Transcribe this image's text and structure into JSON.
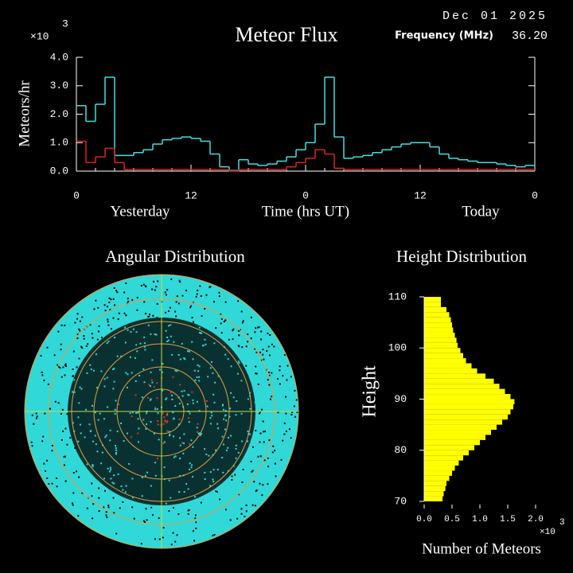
{
  "chart_data": [
    {
      "type": "step-line",
      "title": "Meteor Flux",
      "date": "Dec 01 2025",
      "frequency_label": "Frequency (MHz)",
      "frequency": "36.20",
      "multiplier": "×10",
      "exponent": "3",
      "ylabel": "Meteors/hr",
      "xlabel": "Time (hrs UT)",
      "day_labels": [
        "Yesterday",
        "Today"
      ],
      "x": [
        0,
        1,
        2,
        3,
        4,
        5,
        6,
        7,
        8,
        9,
        10,
        11,
        12,
        13,
        14,
        15,
        16,
        17,
        18,
        19,
        20,
        21,
        22,
        23,
        24,
        25,
        26,
        27,
        28,
        29,
        30,
        31,
        32,
        33,
        34,
        35,
        36,
        37,
        38,
        39,
        40,
        41,
        42,
        43,
        44,
        45,
        46,
        47
      ],
      "xlim": [
        0,
        48
      ],
      "xticks": [
        {
          "value": 0,
          "label": "0"
        },
        {
          "value": 12,
          "label": "12"
        },
        {
          "value": 24,
          "label": "0"
        },
        {
          "value": 36,
          "label": "12"
        },
        {
          "value": 48,
          "label": "0"
        }
      ],
      "ylim": [
        0,
        4
      ],
      "yticks": [
        {
          "value": 0,
          "label": "0.0"
        },
        {
          "value": 1,
          "label": "1.0"
        },
        {
          "value": 2,
          "label": "2.0"
        },
        {
          "value": 3,
          "label": "3.0"
        },
        {
          "value": 4,
          "label": "4.0"
        }
      ],
      "series": [
        {
          "color": "#40e0e0",
          "values": [
            2.3,
            1.75,
            2.35,
            3.3,
            0.55,
            0.55,
            0.65,
            0.75,
            0.95,
            1.1,
            1.15,
            1.2,
            1.15,
            1.05,
            0.6,
            0.15,
            0.02,
            0.4,
            0.25,
            0.2,
            0.25,
            0.35,
            0.5,
            0.75,
            1.0,
            1.65,
            3.3,
            1.2,
            0.45,
            0.5,
            0.55,
            0.65,
            0.75,
            0.85,
            0.95,
            1.0,
            1.0,
            0.85,
            0.6,
            0.45,
            0.4,
            0.35,
            0.3,
            0.3,
            0.25,
            0.2,
            0.15,
            0.2
          ]
        },
        {
          "color": "#e02020",
          "values": [
            1.05,
            0.3,
            0.5,
            0.8,
            0.3,
            0.05,
            0.05,
            0.05,
            0.05,
            0.05,
            0.05,
            0.05,
            0.05,
            0.05,
            0.05,
            0.05,
            0.0,
            0.05,
            0.05,
            0.05,
            0.05,
            0.05,
            0.15,
            0.3,
            0.45,
            0.75,
            0.6,
            0.1,
            0.05,
            0.05,
            0.05,
            0.05,
            0.05,
            0.05,
            0.05,
            0.05,
            0.05,
            0.05,
            0.05,
            0.05,
            0.05,
            0.05,
            0.05,
            0.05,
            0.05,
            0.05,
            0.05,
            0.05
          ]
        }
      ]
    },
    {
      "type": "polar-scatter",
      "title": "Angular Distribution"
    },
    {
      "type": "histogram",
      "orientation": "horizontal",
      "title": "Height Distribution",
      "ylabel": "Height",
      "xlabel": "Number of Meteors",
      "multiplier": "×10",
      "exponent": "3",
      "color": "#ffff00",
      "bins": [
        70,
        71,
        72,
        73,
        74,
        75,
        76,
        77,
        78,
        79,
        80,
        81,
        82,
        83,
        84,
        85,
        86,
        87,
        88,
        89,
        90,
        91,
        92,
        93,
        94,
        95,
        96,
        97,
        98,
        99,
        100,
        101,
        102,
        103,
        104,
        105,
        106,
        107,
        108,
        109,
        110
      ],
      "values": [
        0.33,
        0.35,
        0.38,
        0.4,
        0.45,
        0.5,
        0.55,
        0.62,
        0.7,
        0.8,
        0.9,
        1.0,
        1.1,
        1.2,
        1.3,
        1.4,
        1.5,
        1.55,
        1.6,
        1.62,
        1.55,
        1.45,
        1.35,
        1.25,
        1.1,
        0.95,
        0.85,
        0.75,
        0.7,
        0.65,
        0.6,
        0.58,
        0.55,
        0.52,
        0.5,
        0.48,
        0.45,
        0.4,
        0.3,
        0.3
      ],
      "xlim": [
        0,
        2
      ],
      "xticks": [
        {
          "value": 0,
          "label": "0.0"
        },
        {
          "value": 0.5,
          "label": "0.5"
        },
        {
          "value": 1,
          "label": "1.0"
        },
        {
          "value": 1.5,
          "label": "1.5"
        },
        {
          "value": 2,
          "label": "2.0"
        }
      ],
      "ylim": [
        70,
        110
      ],
      "yticks": [
        70,
        80,
        90,
        100,
        110
      ]
    }
  ]
}
